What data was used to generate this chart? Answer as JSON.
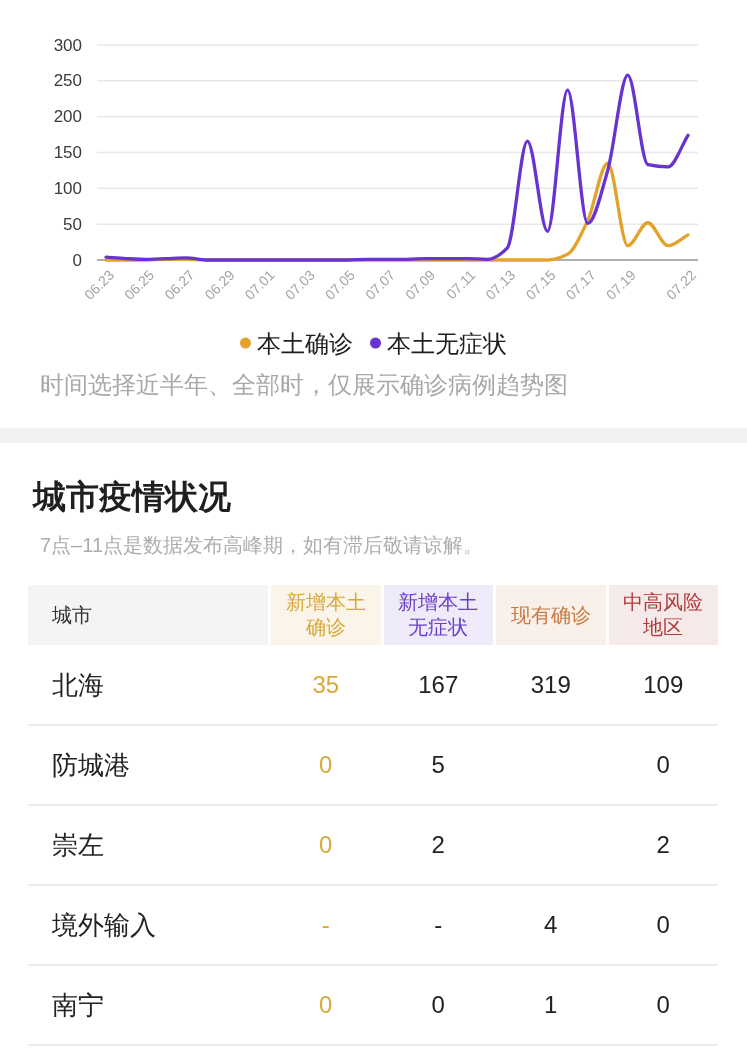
{
  "chart_data": [
    {
      "type": "line",
      "categories": [
        "06.23",
        null,
        "06.25",
        null,
        "06.27",
        null,
        "06.29",
        null,
        "07.01",
        null,
        "07.03",
        null,
        "07.05",
        null,
        "07.07",
        null,
        "07.09",
        null,
        "07.11",
        null,
        "07.13",
        null,
        "07.15",
        null,
        "07.17",
        null,
        "07.19",
        null,
        null,
        "07.22"
      ],
      "series": [
        {
          "name": "本土确诊",
          "color": "#e3a22c",
          "values": [
            0,
            0,
            0,
            1,
            1,
            0,
            0,
            0,
            0,
            0,
            0,
            0,
            0,
            0,
            0,
            0,
            0,
            0,
            0,
            0,
            0,
            0,
            0,
            8,
            55,
            135,
            20,
            52,
            20,
            35
          ]
        },
        {
          "name": "本土无症状",
          "color": "#6933d0",
          "values": [
            4,
            2,
            1,
            2,
            3,
            0,
            0,
            0,
            0,
            0,
            0,
            0,
            0,
            1,
            1,
            1,
            2,
            2,
            2,
            1,
            17,
            166,
            40,
            237,
            51,
            125,
            258,
            133,
            130,
            174
          ]
        }
      ],
      "ylim": [
        0,
        300
      ],
      "yticks": [
        0,
        50,
        100,
        150,
        200,
        250,
        300
      ],
      "grid": "y",
      "legend": "bottom",
      "annotations": [
        "时间选择近半年、全部时，仅展示确诊病例趋势图"
      ]
    },
    {
      "type": "other",
      "title": "城市疫情状况",
      "subtitle": "7点–11点是数据发布高峰期，如有滞后敬请谅解。",
      "annotations": [
        "城市"
      ],
      "categories": [
        "北海",
        "防城港",
        "崇左",
        "境外输入",
        "南宁"
      ],
      "data_labels": true,
      "series": [
        {
          "name": "新增本土确诊",
          "color": "#d8a83a",
          "colors": [
            "#d8a83a",
            "#d8a83a",
            "#d8a83a",
            "#d8a83a",
            "#d8a83a"
          ],
          "values": [
            35,
            0,
            0,
            null,
            0
          ],
          "value_labels": [
            "35",
            "0",
            "0",
            "-",
            "0"
          ]
        },
        {
          "name": "新增本土无症状",
          "color": "#6b40c9",
          "values": [
            167,
            5,
            2,
            null,
            0
          ],
          "value_labels": [
            "167",
            "5",
            "2",
            "-",
            "0"
          ]
        },
        {
          "name": "现有确诊",
          "color": "#c87a42",
          "values": [
            319,
            null,
            null,
            4,
            1
          ]
        },
        {
          "name": "中高风险地区",
          "color": "#b03a3a",
          "values": [
            109,
            0,
            2,
            0,
            0
          ]
        }
      ]
    }
  ]
}
